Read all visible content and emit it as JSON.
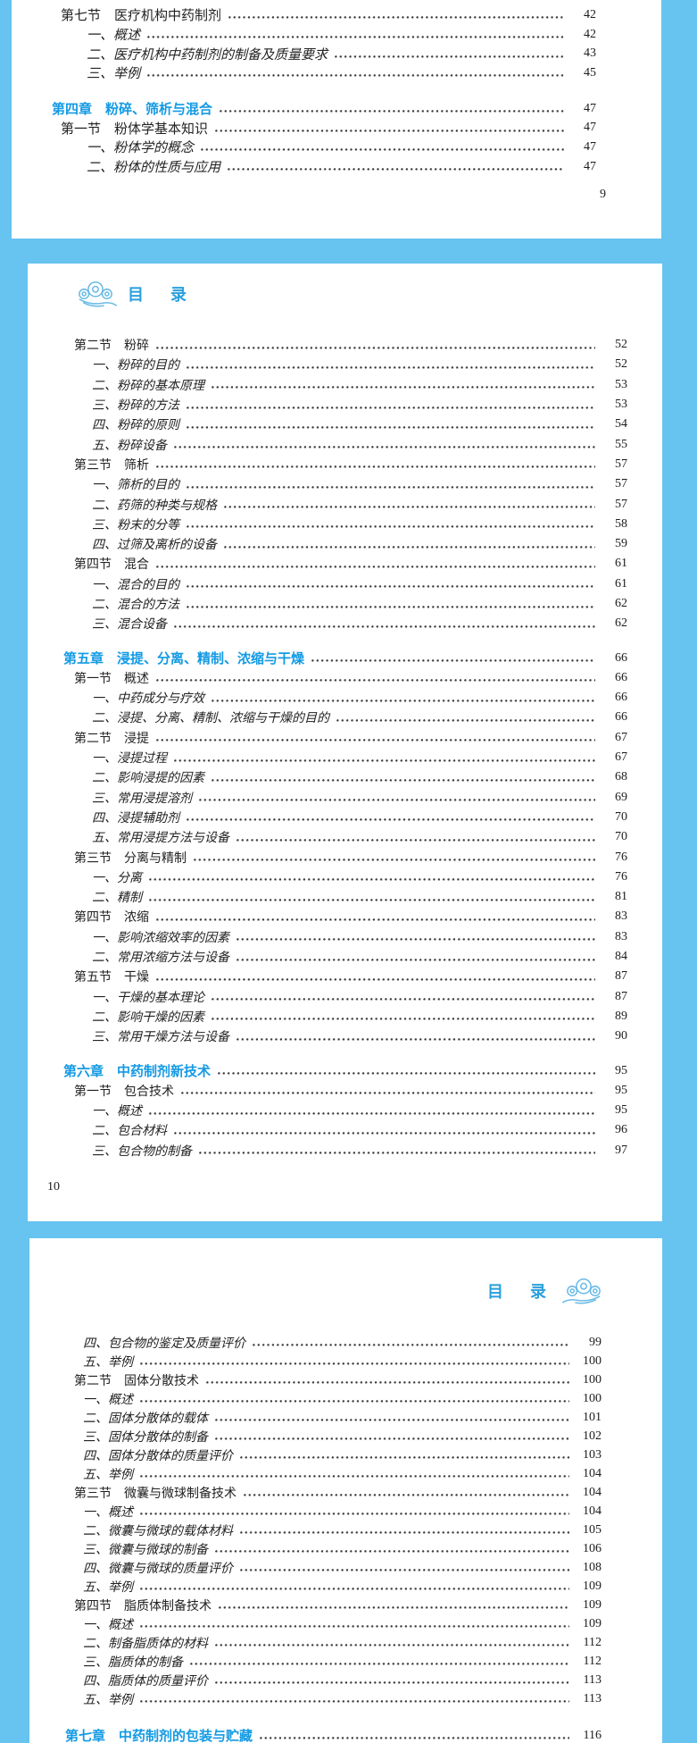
{
  "colors": {
    "background": "#67C3F0",
    "page": "#FFFFFF",
    "chapter_heading": "#149AE4",
    "header_title": "#2AA0DC",
    "cloud_outline": "#6ABAE6",
    "body_text": "#222222"
  },
  "pages": [
    {
      "folio": "9",
      "folio_position": "bottom-right",
      "entries": [
        {
          "level": "section",
          "label": "第七节　医疗机构中药制剂",
          "page": "42"
        },
        {
          "level": "item",
          "label": "一、概述",
          "page": "42"
        },
        {
          "level": "item",
          "label": "二、医疗机构中药制剂的制备及质量要求",
          "page": "43"
        },
        {
          "level": "item",
          "label": "三、举例",
          "page": "45"
        },
        {
          "level": "chapter",
          "label": "第四章　粉碎、筛析与混合",
          "page": "47",
          "gap": true
        },
        {
          "level": "section",
          "label": "第一节　粉体学基本知识",
          "page": "47"
        },
        {
          "level": "item",
          "label": "一、粉体学的概念",
          "page": "47"
        },
        {
          "level": "item",
          "label": "二、粉体的性质与应用",
          "page": "47"
        }
      ]
    },
    {
      "folio": "10",
      "folio_position": "bottom-left",
      "header": {
        "title": "目　录",
        "icon": "auspicious-cloud-icon",
        "icon_side": "left"
      },
      "entries": [
        {
          "level": "section",
          "label": "第二节　粉碎",
          "page": "52"
        },
        {
          "level": "item",
          "label": "一、粉碎的目的",
          "page": "52"
        },
        {
          "level": "item",
          "label": "二、粉碎的基本原理",
          "page": "53"
        },
        {
          "level": "item",
          "label": "三、粉碎的方法",
          "page": "53"
        },
        {
          "level": "item",
          "label": "四、粉碎的原则",
          "page": "54"
        },
        {
          "level": "item",
          "label": "五、粉碎设备",
          "page": "55"
        },
        {
          "level": "section",
          "label": "第三节　筛析",
          "page": "57"
        },
        {
          "level": "item",
          "label": "一、筛析的目的",
          "page": "57"
        },
        {
          "level": "item",
          "label": "二、药筛的种类与规格",
          "page": "57"
        },
        {
          "level": "item",
          "label": "三、粉末的分等",
          "page": "58"
        },
        {
          "level": "item",
          "label": "四、过筛及离析的设备",
          "page": "59"
        },
        {
          "level": "section",
          "label": "第四节　混合",
          "page": "61"
        },
        {
          "level": "item",
          "label": "一、混合的目的",
          "page": "61"
        },
        {
          "level": "item",
          "label": "二、混合的方法",
          "page": "62"
        },
        {
          "level": "item",
          "label": "三、混合设备",
          "page": "62"
        },
        {
          "level": "chapter",
          "label": "第五章　浸提、分离、精制、浓缩与干燥",
          "page": "66",
          "gap": true
        },
        {
          "level": "section",
          "label": "第一节　概述",
          "page": "66"
        },
        {
          "level": "item",
          "label": "一、中药成分与疗效",
          "page": "66"
        },
        {
          "level": "item",
          "label": "二、浸提、分离、精制、浓缩与干燥的目的",
          "page": "66"
        },
        {
          "level": "section",
          "label": "第二节　浸提",
          "page": "67"
        },
        {
          "level": "item",
          "label": "一、浸提过程",
          "page": "67"
        },
        {
          "level": "item",
          "label": "二、影响浸提的因素",
          "page": "68"
        },
        {
          "level": "item",
          "label": "三、常用浸提溶剂",
          "page": "69"
        },
        {
          "level": "item",
          "label": "四、浸提辅助剂",
          "page": "70"
        },
        {
          "level": "item",
          "label": "五、常用浸提方法与设备",
          "page": "70"
        },
        {
          "level": "section",
          "label": "第三节　分离与精制",
          "page": "76"
        },
        {
          "level": "item",
          "label": "一、分离",
          "page": "76"
        },
        {
          "level": "item",
          "label": "二、精制",
          "page": "81"
        },
        {
          "level": "section",
          "label": "第四节　浓缩",
          "page": "83"
        },
        {
          "level": "item",
          "label": "一、影响浓缩效率的因素",
          "page": "83"
        },
        {
          "level": "item",
          "label": "二、常用浓缩方法与设备",
          "page": "84"
        },
        {
          "level": "section",
          "label": "第五节　干燥",
          "page": "87"
        },
        {
          "level": "item",
          "label": "一、干燥的基本理论",
          "page": "87"
        },
        {
          "level": "item",
          "label": "二、影响干燥的因素",
          "page": "89"
        },
        {
          "level": "item",
          "label": "三、常用干燥方法与设备",
          "page": "90"
        },
        {
          "level": "chapter",
          "label": "第六章　中药制剂新技术",
          "page": "95",
          "gap": true
        },
        {
          "level": "section",
          "label": "第一节　包合技术",
          "page": "95"
        },
        {
          "level": "item",
          "label": "一、概述",
          "page": "95"
        },
        {
          "level": "item",
          "label": "二、包合材料",
          "page": "96"
        },
        {
          "level": "item",
          "label": "三、包合物的制备",
          "page": "97"
        }
      ]
    },
    {
      "header": {
        "title": "目　录",
        "icon": "auspicious-cloud-icon",
        "icon_side": "right"
      },
      "entries": [
        {
          "level": "item",
          "label": "四、包合物的鉴定及质量评价",
          "page": "99"
        },
        {
          "level": "item",
          "label": "五、举例",
          "page": "100"
        },
        {
          "level": "section",
          "label": "第二节　固体分散技术",
          "page": "100"
        },
        {
          "level": "item",
          "label": "一、概述",
          "page": "100"
        },
        {
          "level": "item",
          "label": "二、固体分散体的载体",
          "page": "101"
        },
        {
          "level": "item",
          "label": "三、固体分散体的制备",
          "page": "102"
        },
        {
          "level": "item",
          "label": "四、固体分散体的质量评价",
          "page": "103"
        },
        {
          "level": "item",
          "label": "五、举例",
          "page": "104"
        },
        {
          "level": "section",
          "label": "第三节　微囊与微球制备技术",
          "page": "104"
        },
        {
          "level": "item",
          "label": "一、概述",
          "page": "104"
        },
        {
          "level": "item",
          "label": "二、微囊与微球的载体材料",
          "page": "105"
        },
        {
          "level": "item",
          "label": "三、微囊与微球的制备",
          "page": "106"
        },
        {
          "level": "item",
          "label": "四、微囊与微球的质量评价",
          "page": "108"
        },
        {
          "level": "item",
          "label": "五、举例",
          "page": "109"
        },
        {
          "level": "section",
          "label": "第四节　脂质体制备技术",
          "page": "109"
        },
        {
          "level": "item",
          "label": "一、概述",
          "page": "109"
        },
        {
          "level": "item",
          "label": "二、制备脂质体的材料",
          "page": "112"
        },
        {
          "level": "item",
          "label": "三、脂质体的制备",
          "page": "112"
        },
        {
          "level": "item",
          "label": "四、脂质体的质量评价",
          "page": "113"
        },
        {
          "level": "item",
          "label": "五、举例",
          "page": "113"
        },
        {
          "level": "chapter",
          "label": "第七章　中药制剂的包装与贮藏",
          "page": "116",
          "gap": true
        }
      ]
    }
  ]
}
